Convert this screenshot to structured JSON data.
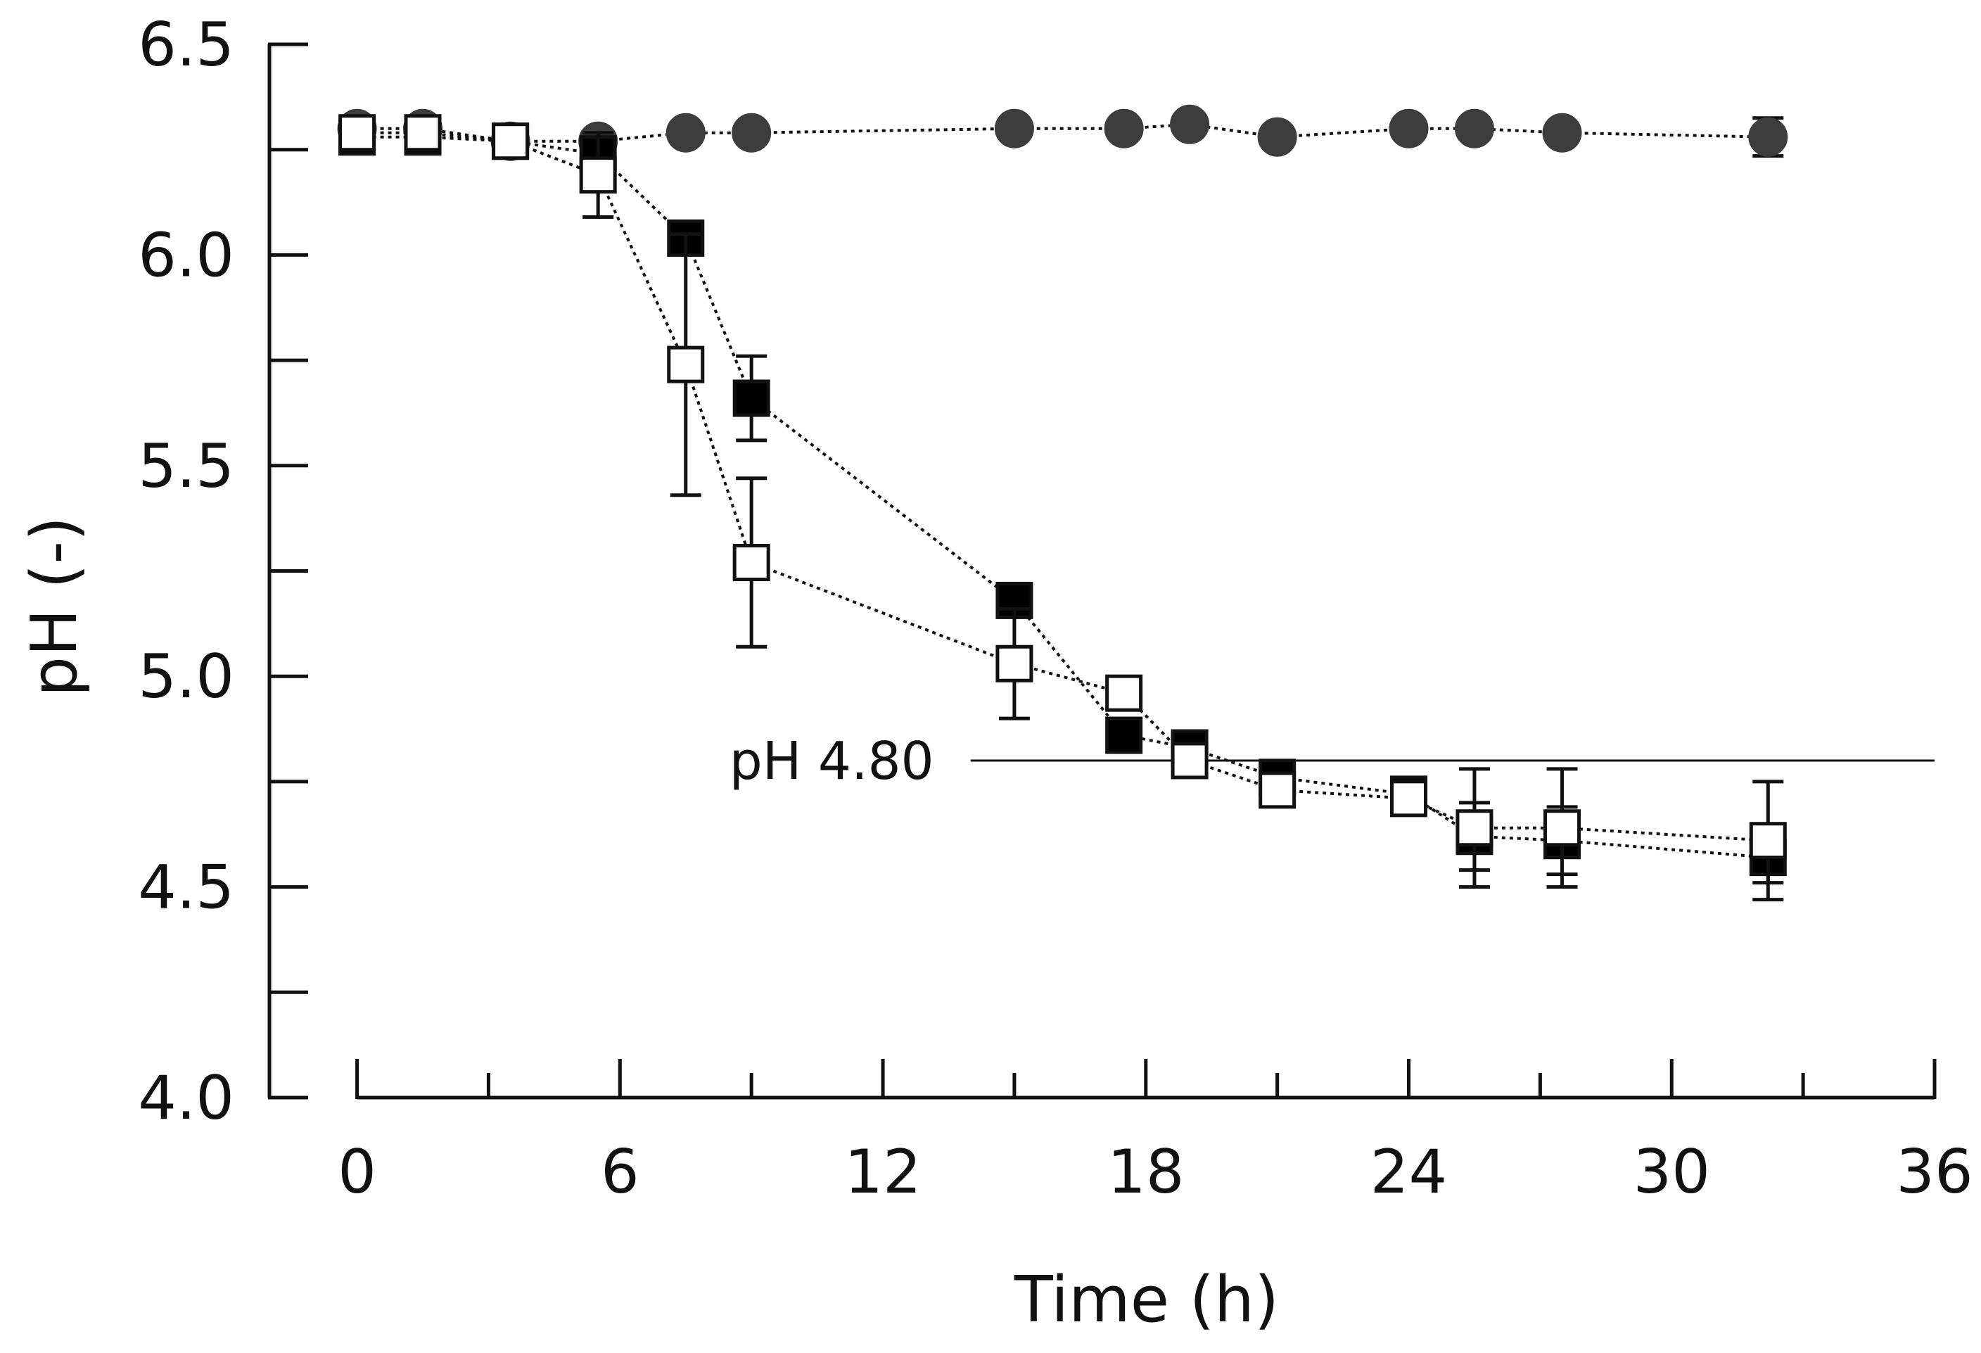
{
  "chart_data": {
    "type": "scatter",
    "title": "",
    "xlabel": "Time (h)",
    "ylabel": "pH (-)",
    "xlim": [
      -2,
      36
    ],
    "ylim": [
      4.0,
      6.5
    ],
    "xticks": [
      0,
      6,
      12,
      18,
      24,
      30,
      36
    ],
    "xtick_labels": [
      "0",
      "6",
      "12",
      "18",
      "24",
      "30",
      "36"
    ],
    "yticks": [
      4.0,
      4.5,
      5.0,
      5.5,
      6.0,
      6.5
    ],
    "ytick_labels": [
      "4.0",
      "4.5",
      "5.0",
      "5.5",
      "6.0",
      "6.5"
    ],
    "grid": false,
    "legend": "none",
    "reference_line": {
      "y": 4.8,
      "x_from": 14,
      "x_to": 36,
      "label": "pH 4.80"
    },
    "series": [
      {
        "name": "circles",
        "marker": "circle",
        "fill": "#3d3d3d",
        "points": [
          {
            "x": 0,
            "y": 6.3,
            "err": 0.01
          },
          {
            "x": 1.5,
            "y": 6.3,
            "err": 0.01
          },
          {
            "x": 3.5,
            "y": 6.27,
            "err": 0.01
          },
          {
            "x": 5.5,
            "y": 6.27,
            "err": 0.02
          },
          {
            "x": 7.5,
            "y": 6.29,
            "err": 0.01
          },
          {
            "x": 9,
            "y": 6.29,
            "err": 0.01
          },
          {
            "x": 15,
            "y": 6.3,
            "err": 0.01
          },
          {
            "x": 17.5,
            "y": 6.3,
            "err": 0.01
          },
          {
            "x": 19,
            "y": 6.31,
            "err": 0.01
          },
          {
            "x": 21,
            "y": 6.28,
            "err": 0.01
          },
          {
            "x": 24,
            "y": 6.3,
            "err": 0.01
          },
          {
            "x": 25.5,
            "y": 6.3,
            "err": 0.01
          },
          {
            "x": 27.5,
            "y": 6.29,
            "err": 0.01
          },
          {
            "x": 32.2,
            "y": 6.28,
            "err": 0.045
          }
        ]
      },
      {
        "name": "filled squares",
        "marker": "square",
        "fill": "#000000",
        "points": [
          {
            "x": 0,
            "y": 6.28,
            "err": 0.01
          },
          {
            "x": 1.5,
            "y": 6.28,
            "err": 0.01
          },
          {
            "x": 3.5,
            "y": 6.27,
            "err": 0.01
          },
          {
            "x": 5.5,
            "y": 6.24,
            "err": 0.02
          },
          {
            "x": 7.5,
            "y": 6.04,
            "err": 0.02
          },
          {
            "x": 9,
            "y": 5.66,
            "err": 0.1
          },
          {
            "x": 15,
            "y": 5.18,
            "err": 0.02
          },
          {
            "x": 17.5,
            "y": 4.86,
            "err": 0.02
          },
          {
            "x": 19,
            "y": 4.83,
            "err": 0.02
          },
          {
            "x": 21,
            "y": 4.76,
            "err": 0.02
          },
          {
            "x": 24,
            "y": 4.72,
            "err": 0.02
          },
          {
            "x": 25.5,
            "y": 4.62,
            "err": 0.08
          },
          {
            "x": 27.5,
            "y": 4.61,
            "err": 0.08
          },
          {
            "x": 32.2,
            "y": 4.57,
            "err": 0.06
          }
        ]
      },
      {
        "name": "open squares",
        "marker": "square",
        "fill": "#ffffff",
        "points": [
          {
            "x": 0,
            "y": 6.29,
            "err": 0.01
          },
          {
            "x": 1.5,
            "y": 6.29,
            "err": 0.01
          },
          {
            "x": 3.5,
            "y": 6.27,
            "err": 0.01
          },
          {
            "x": 5.5,
            "y": 6.19,
            "err": 0.1
          },
          {
            "x": 7.5,
            "y": 5.74,
            "err": 0.31
          },
          {
            "x": 9,
            "y": 5.27,
            "err": 0.2
          },
          {
            "x": 15,
            "y": 5.03,
            "err": 0.13
          },
          {
            "x": 17.5,
            "y": 4.96,
            "err": 0.02
          },
          {
            "x": 19,
            "y": 4.8,
            "err": 0.02
          },
          {
            "x": 21,
            "y": 4.73,
            "err": 0.02
          },
          {
            "x": 24,
            "y": 4.71,
            "err": 0.02
          },
          {
            "x": 25.5,
            "y": 4.64,
            "err": 0.14
          },
          {
            "x": 27.5,
            "y": 4.64,
            "err": 0.14
          },
          {
            "x": 32.2,
            "y": 4.61,
            "err": 0.14
          }
        ]
      }
    ]
  }
}
